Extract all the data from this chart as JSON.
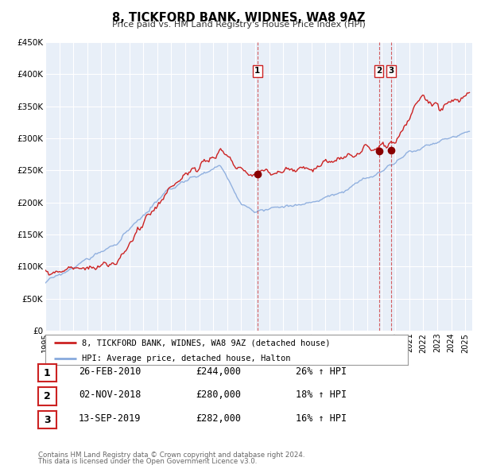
{
  "title": "8, TICKFORD BANK, WIDNES, WA8 9AZ",
  "subtitle": "Price paid vs. HM Land Registry's House Price Index (HPI)",
  "ylim": [
    0,
    450000
  ],
  "yticks": [
    0,
    50000,
    100000,
    150000,
    200000,
    250000,
    300000,
    350000,
    400000,
    450000
  ],
  "ytick_labels": [
    "£0",
    "£50K",
    "£100K",
    "£150K",
    "£200K",
    "£250K",
    "£300K",
    "£350K",
    "£400K",
    "£450K"
  ],
  "xlim_start": 1995.0,
  "xlim_end": 2025.5,
  "plot_bg_color": "#e8eff8",
  "grid_color": "#ffffff",
  "red_line_color": "#cc2222",
  "blue_line_color": "#88aadd",
  "sale_dot_color": "#880000",
  "vline_color": "#cc2222",
  "transaction_labels": [
    {
      "num": 1,
      "date": "26-FEB-2010",
      "x": 2010.15,
      "price": 244000,
      "hpi_pct": "26%"
    },
    {
      "num": 2,
      "date": "02-NOV-2018",
      "x": 2018.83,
      "price": 280000,
      "hpi_pct": "18%"
    },
    {
      "num": 3,
      "date": "13-SEP-2019",
      "x": 2019.7,
      "price": 282000,
      "hpi_pct": "16%"
    }
  ],
  "legend_line1": "8, TICKFORD BANK, WIDNES, WA8 9AZ (detached house)",
  "legend_line2": "HPI: Average price, detached house, Halton",
  "footer1": "Contains HM Land Registry data © Crown copyright and database right 2024.",
  "footer2": "This data is licensed under the Open Government Licence v3.0."
}
